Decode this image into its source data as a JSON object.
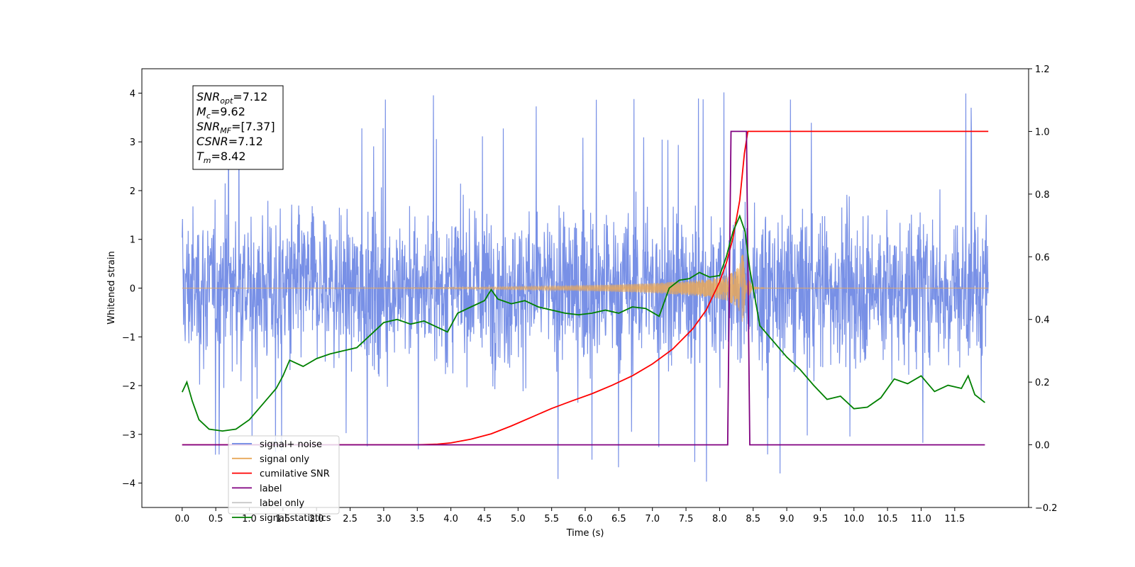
{
  "chart_data": {
    "type": "line",
    "xlabel": "Time (s)",
    "ylabel_left": "Whitened strain",
    "xlim": [
      -0.6,
      12.6
    ],
    "ylim_left": [
      -4.5,
      4.5
    ],
    "ylim_right": [
      -0.2,
      1.2
    ],
    "xticks": [
      "0.0",
      "0.5",
      "1.0",
      "1.5",
      "2.0",
      "2.5",
      "3.0",
      "3.5",
      "4.0",
      "4.5",
      "5.0",
      "5.5",
      "6.0",
      "6.5",
      "7.0",
      "7.5",
      "8.0",
      "8.5",
      "9.0",
      "9.5",
      "10.0",
      "10.5",
      "11.0",
      "11.5"
    ],
    "yticks_left": [
      "4",
      "3",
      "2",
      "1",
      "0",
      "−1",
      "−2",
      "−3",
      "−4"
    ],
    "yticks_right": [
      "1.2",
      "1.0",
      "0.8",
      "0.6",
      "0.4",
      "0.2",
      "0.0",
      "−0.2"
    ],
    "grid": false,
    "legend_position": "lower-left",
    "annotation": {
      "lines": [
        {
          "main": "SNR",
          "sub": "opt",
          "rest": "=7.12"
        },
        {
          "main": "M",
          "sub": "c",
          "rest": "=9.62"
        },
        {
          "main": "SNR",
          "sub": "MF",
          "rest": "=[7.37]"
        },
        {
          "main": "CSNR",
          "sub": "",
          "rest": "=7.12"
        },
        {
          "main": "T",
          "sub": "m",
          "rest": "=8.42"
        }
      ]
    },
    "series": [
      {
        "name": "signal+ noise",
        "color": "#6c87e4",
        "axis": "left",
        "description": "whitened noise, roughly ±2 envelope, spikes to ±4"
      },
      {
        "name": "signal only",
        "color": "#e8a85a",
        "axis": "left",
        "chirp_peak_time": 8.35,
        "chirp_peak_amplitude": 0.7
      },
      {
        "name": "cumilative SNR",
        "color": "#ff0000",
        "axis": "right",
        "points": [
          [
            0.0,
            0.0
          ],
          [
            3.5,
            0.0
          ],
          [
            3.8,
            0.002
          ],
          [
            4.0,
            0.006
          ],
          [
            4.3,
            0.018
          ],
          [
            4.6,
            0.035
          ],
          [
            4.9,
            0.06
          ],
          [
            5.2,
            0.088
          ],
          [
            5.5,
            0.116
          ],
          [
            5.8,
            0.14
          ],
          [
            6.1,
            0.163
          ],
          [
            6.4,
            0.19
          ],
          [
            6.7,
            0.22
          ],
          [
            7.0,
            0.258
          ],
          [
            7.3,
            0.305
          ],
          [
            7.6,
            0.37
          ],
          [
            7.8,
            0.43
          ],
          [
            8.0,
            0.52
          ],
          [
            8.1,
            0.58
          ],
          [
            8.2,
            0.66
          ],
          [
            8.3,
            0.78
          ],
          [
            8.37,
            0.93
          ],
          [
            8.42,
            1.0
          ],
          [
            12.0,
            1.0
          ]
        ]
      },
      {
        "name": "label",
        "color": "#800080",
        "axis": "right",
        "points": [
          [
            0.0,
            0.0
          ],
          [
            8.12,
            0.0
          ],
          [
            8.17,
            1.0
          ],
          [
            8.4,
            1.0
          ],
          [
            8.45,
            0.0
          ],
          [
            11.95,
            0.0
          ]
        ]
      },
      {
        "name": "label only",
        "color": "#c8c8c8",
        "axis": "right",
        "points": []
      },
      {
        "name": "signal statistics",
        "color": "#008000",
        "axis": "right",
        "points": [
          [
            0.0,
            0.168
          ],
          [
            0.07,
            0.2
          ],
          [
            0.15,
            0.14
          ],
          [
            0.25,
            0.08
          ],
          [
            0.4,
            0.05
          ],
          [
            0.6,
            0.044
          ],
          [
            0.8,
            0.05
          ],
          [
            1.0,
            0.08
          ],
          [
            1.2,
            0.13
          ],
          [
            1.4,
            0.18
          ],
          [
            1.5,
            0.22
          ],
          [
            1.6,
            0.27
          ],
          [
            1.8,
            0.25
          ],
          [
            2.0,
            0.275
          ],
          [
            2.2,
            0.29
          ],
          [
            2.4,
            0.3
          ],
          [
            2.6,
            0.31
          ],
          [
            2.8,
            0.35
          ],
          [
            3.0,
            0.39
          ],
          [
            3.2,
            0.4
          ],
          [
            3.4,
            0.385
          ],
          [
            3.6,
            0.395
          ],
          [
            3.8,
            0.375
          ],
          [
            3.95,
            0.36
          ],
          [
            4.1,
            0.42
          ],
          [
            4.3,
            0.44
          ],
          [
            4.5,
            0.46
          ],
          [
            4.6,
            0.495
          ],
          [
            4.7,
            0.465
          ],
          [
            4.9,
            0.45
          ],
          [
            5.1,
            0.46
          ],
          [
            5.3,
            0.44
          ],
          [
            5.5,
            0.43
          ],
          [
            5.7,
            0.42
          ],
          [
            5.9,
            0.415
          ],
          [
            6.1,
            0.42
          ],
          [
            6.3,
            0.43
          ],
          [
            6.5,
            0.42
          ],
          [
            6.7,
            0.44
          ],
          [
            6.9,
            0.435
          ],
          [
            7.1,
            0.41
          ],
          [
            7.25,
            0.5
          ],
          [
            7.4,
            0.525
          ],
          [
            7.55,
            0.53
          ],
          [
            7.7,
            0.55
          ],
          [
            7.85,
            0.535
          ],
          [
            8.0,
            0.54
          ],
          [
            8.1,
            0.6
          ],
          [
            8.2,
            0.68
          ],
          [
            8.3,
            0.73
          ],
          [
            8.38,
            0.68
          ],
          [
            8.45,
            0.56
          ],
          [
            8.6,
            0.38
          ],
          [
            8.8,
            0.33
          ],
          [
            9.0,
            0.28
          ],
          [
            9.2,
            0.24
          ],
          [
            9.4,
            0.19
          ],
          [
            9.6,
            0.145
          ],
          [
            9.8,
            0.155
          ],
          [
            10.0,
            0.115
          ],
          [
            10.2,
            0.12
          ],
          [
            10.4,
            0.15
          ],
          [
            10.6,
            0.21
          ],
          [
            10.8,
            0.195
          ],
          [
            11.0,
            0.22
          ],
          [
            11.2,
            0.17
          ],
          [
            11.4,
            0.19
          ],
          [
            11.6,
            0.18
          ],
          [
            11.7,
            0.22
          ],
          [
            11.8,
            0.16
          ],
          [
            11.95,
            0.135
          ]
        ]
      }
    ]
  }
}
